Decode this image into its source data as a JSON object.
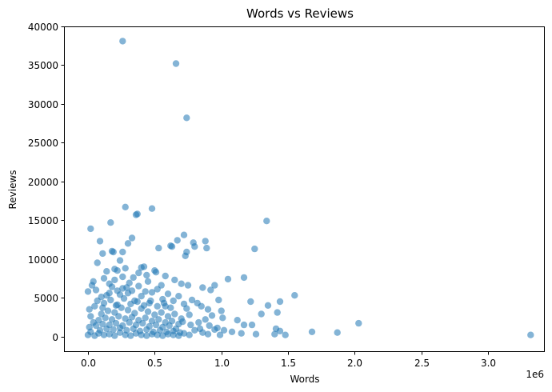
{
  "chart_data": {
    "type": "scatter",
    "title": "Words vs Reviews",
    "xlabel": "Words",
    "ylabel": "Reviews",
    "x_offset_label": "1e6",
    "xlim": [
      -0.18,
      3.42
    ],
    "ylim": [
      -1900,
      40000
    ],
    "x_ticks": [
      0.0,
      0.5,
      1.0,
      1.5,
      2.0,
      2.5,
      3.0
    ],
    "x_tick_labels": [
      "0.0",
      "0.5",
      "1.0",
      "1.5",
      "2.0",
      "2.5",
      "3.0"
    ],
    "y_ticks": [
      0,
      5000,
      10000,
      15000,
      20000,
      25000,
      30000,
      35000,
      40000
    ],
    "y_tick_labels": [
      "0",
      "5000",
      "10000",
      "15000",
      "20000",
      "25000",
      "30000",
      "35000",
      "40000"
    ],
    "grid": false,
    "marker_color": "#1f77b4",
    "marker_opacity": 0.55,
    "points": [
      [
        0.26,
        38100
      ],
      [
        0.66,
        35200
      ],
      [
        0.74,
        28200
      ],
      [
        0.28,
        16700
      ],
      [
        0.48,
        16500
      ],
      [
        0.37,
        15800
      ],
      [
        0.36,
        15700
      ],
      [
        0.17,
        14700
      ],
      [
        0.02,
        13900
      ],
      [
        1.34,
        14900
      ],
      [
        0.72,
        13100
      ],
      [
        0.67,
        12400
      ],
      [
        0.33,
        12700
      ],
      [
        0.09,
        12300
      ],
      [
        0.79,
        12100
      ],
      [
        0.88,
        12300
      ],
      [
        0.3,
        12000
      ],
      [
        0.62,
        11700
      ],
      [
        0.63,
        11600
      ],
      [
        0.8,
        11600
      ],
      [
        0.89,
        11400
      ],
      [
        0.53,
        11400
      ],
      [
        1.25,
        11300
      ],
      [
        0.26,
        10900
      ],
      [
        0.18,
        11000
      ],
      [
        0.19,
        10900
      ],
      [
        0.11,
        10700
      ],
      [
        0.74,
        10900
      ],
      [
        0.73,
        10400
      ],
      [
        0.24,
        9800
      ],
      [
        0.07,
        9500
      ],
      [
        0.04,
        7100
      ],
      [
        0.03,
        6600
      ],
      [
        0.06,
        6000
      ],
      [
        0.12,
        7500
      ],
      [
        0.14,
        8400
      ],
      [
        0.2,
        8700
      ],
      [
        0.22,
        8500
      ],
      [
        0.4,
        8900
      ],
      [
        0.42,
        9000
      ],
      [
        0.5,
        8500
      ],
      [
        0.51,
        8300
      ],
      [
        0.58,
        7800
      ],
      [
        0.65,
        7300
      ],
      [
        0.7,
        6800
      ],
      [
        0.75,
        6600
      ],
      [
        0.86,
        6300
      ],
      [
        0.95,
        6600
      ],
      [
        0.92,
        6000
      ],
      [
        1.05,
        7400
      ],
      [
        1.17,
        7600
      ],
      [
        1.22,
        4500
      ],
      [
        1.35,
        4000
      ],
      [
        1.44,
        4500
      ],
      [
        1.42,
        3100
      ],
      [
        1.55,
        5300
      ],
      [
        1.3,
        2900
      ],
      [
        1.12,
        2100
      ],
      [
        1.17,
        1500
      ],
      [
        1.23,
        1500
      ],
      [
        1.08,
        600
      ],
      [
        1.02,
        800
      ],
      [
        1.0,
        3300
      ],
      [
        1.01,
        2400
      ],
      [
        0.98,
        4700
      ],
      [
        0.97,
        1100
      ],
      [
        1.41,
        1000
      ],
      [
        1.44,
        700
      ],
      [
        1.48,
        200
      ],
      [
        1.4,
        300
      ],
      [
        1.15,
        400
      ],
      [
        1.26,
        300
      ],
      [
        1.68,
        600
      ],
      [
        1.87,
        500
      ],
      [
        2.03,
        1700
      ],
      [
        3.32,
        200
      ],
      [
        0.0,
        5800
      ],
      [
        0.1,
        5100
      ],
      [
        0.16,
        5600
      ],
      [
        0.26,
        6200
      ],
      [
        0.31,
        6900
      ],
      [
        0.34,
        7600
      ],
      [
        0.45,
        7100
      ],
      [
        0.55,
        6600
      ],
      [
        0.6,
        5500
      ],
      [
        0.68,
        5200
      ],
      [
        0.78,
        4700
      ],
      [
        0.82,
        4300
      ],
      [
        0.85,
        3900
      ],
      [
        0.9,
        3500
      ],
      [
        0.93,
        2700
      ],
      [
        0.88,
        2200
      ],
      [
        0.83,
        1800
      ],
      [
        0.77,
        1500
      ],
      [
        0.71,
        1900
      ],
      [
        0.8,
        800
      ],
      [
        0.86,
        500
      ],
      [
        0.9,
        300
      ],
      [
        0.95,
        900
      ],
      [
        0.99,
        200
      ],
      [
        0.84,
        1000
      ],
      [
        0.91,
        1400
      ],
      [
        0.76,
        2800
      ],
      [
        0.74,
        3600
      ],
      [
        0.72,
        4200
      ],
      [
        0.64,
        4600
      ],
      [
        0.58,
        3900
      ],
      [
        0.56,
        4800
      ],
      [
        0.48,
        5700
      ],
      [
        0.46,
        4300
      ],
      [
        0.4,
        5200
      ],
      [
        0.35,
        4600
      ],
      [
        0.3,
        5600
      ],
      [
        0.22,
        5900
      ],
      [
        0.18,
        6400
      ],
      [
        0.14,
        5300
      ],
      [
        0.07,
        4600
      ],
      [
        0.05,
        3900
      ],
      [
        0.01,
        3500
      ],
      [
        0.02,
        2600
      ],
      [
        0.04,
        1800
      ],
      [
        0.01,
        1200
      ],
      [
        0.02,
        600
      ],
      [
        0.0,
        200
      ],
      [
        0.05,
        100
      ],
      [
        0.08,
        400
      ],
      [
        0.12,
        200
      ],
      [
        0.16,
        300
      ],
      [
        0.2,
        100
      ],
      [
        0.24,
        500
      ],
      [
        0.28,
        200
      ],
      [
        0.32,
        100
      ],
      [
        0.36,
        400
      ],
      [
        0.4,
        200
      ],
      [
        0.44,
        100
      ],
      [
        0.48,
        300
      ],
      [
        0.52,
        200
      ],
      [
        0.56,
        100
      ],
      [
        0.6,
        300
      ],
      [
        0.64,
        200
      ],
      [
        0.68,
        100
      ],
      [
        0.72,
        400
      ],
      [
        0.76,
        200
      ],
      [
        0.1,
        2900
      ],
      [
        0.15,
        3300
      ],
      [
        0.2,
        3100
      ],
      [
        0.25,
        3700
      ],
      [
        0.3,
        3400
      ],
      [
        0.35,
        3000
      ],
      [
        0.4,
        3600
      ],
      [
        0.45,
        3200
      ],
      [
        0.5,
        2800
      ],
      [
        0.55,
        3100
      ],
      [
        0.6,
        2600
      ],
      [
        0.65,
        2900
      ],
      [
        0.7,
        2300
      ],
      [
        0.08,
        2100
      ],
      [
        0.13,
        2400
      ],
      [
        0.18,
        2200
      ],
      [
        0.23,
        2600
      ],
      [
        0.28,
        2300
      ],
      [
        0.33,
        2500
      ],
      [
        0.38,
        2100
      ],
      [
        0.43,
        2400
      ],
      [
        0.48,
        2000
      ],
      [
        0.53,
        2200
      ],
      [
        0.58,
        1800
      ],
      [
        0.63,
        2000
      ],
      [
        0.68,
        1600
      ],
      [
        0.06,
        1400
      ],
      [
        0.11,
        1600
      ],
      [
        0.16,
        1500
      ],
      [
        0.21,
        1700
      ],
      [
        0.26,
        1400
      ],
      [
        0.31,
        1800
      ],
      [
        0.36,
        1500
      ],
      [
        0.41,
        1700
      ],
      [
        0.46,
        1300
      ],
      [
        0.51,
        1500
      ],
      [
        0.56,
        1200
      ],
      [
        0.61,
        1400
      ],
      [
        0.66,
        1000
      ],
      [
        0.09,
        800
      ],
      [
        0.14,
        1000
      ],
      [
        0.19,
        900
      ],
      [
        0.24,
        1100
      ],
      [
        0.29,
        800
      ],
      [
        0.34,
        1000
      ],
      [
        0.39,
        700
      ],
      [
        0.44,
        900
      ],
      [
        0.49,
        600
      ],
      [
        0.54,
        800
      ],
      [
        0.59,
        600
      ],
      [
        0.64,
        700
      ],
      [
        0.69,
        500
      ],
      [
        0.12,
        4300
      ],
      [
        0.17,
        4700
      ],
      [
        0.22,
        4100
      ],
      [
        0.27,
        4900
      ],
      [
        0.32,
        4200
      ],
      [
        0.37,
        4500
      ],
      [
        0.42,
        4000
      ],
      [
        0.47,
        4600
      ],
      [
        0.52,
        3900
      ],
      [
        0.57,
        4300
      ],
      [
        0.62,
        3700
      ],
      [
        0.24,
        5400
      ],
      [
        0.29,
        6300
      ],
      [
        0.33,
        5900
      ],
      [
        0.38,
        6500
      ],
      [
        0.43,
        5800
      ],
      [
        0.2,
        7300
      ],
      [
        0.26,
        7700
      ],
      [
        0.38,
        8200
      ],
      [
        0.44,
        7900
      ],
      [
        0.28,
        8800
      ],
      [
        0.16,
        6800
      ],
      [
        0.52,
        6100
      ],
      [
        0.21,
        4000
      ],
      [
        0.11,
        3700
      ]
    ]
  }
}
